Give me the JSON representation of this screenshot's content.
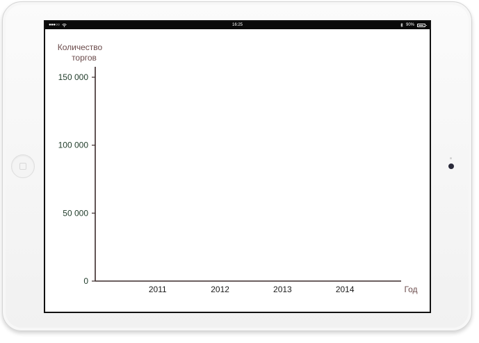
{
  "status_bar": {
    "signal_dots": "●●●○○",
    "time": "16:25",
    "battery_percent": "90%",
    "battery_level": 0.9,
    "icons": [
      "wifi-icon",
      "bluetooth-icon",
      "battery-icon"
    ]
  },
  "chart_data": {
    "type": "bar",
    "title": "",
    "ylabel_lines": [
      "Количество",
      "торгов"
    ],
    "xlabel": "Год",
    "categories": [
      "2011",
      "2012",
      "2013",
      "2014"
    ],
    "values": [
      0,
      0,
      0,
      0
    ],
    "ylim": [
      0,
      150000
    ],
    "yticks": [
      {
        "value": 0,
        "label": "0"
      },
      {
        "value": 50000,
        "label": "50 000"
      },
      {
        "value": 100000,
        "label": "100 000"
      },
      {
        "value": 150000,
        "label": "150 000"
      }
    ],
    "grid": false,
    "colors": {
      "axis": "#3a2a2a",
      "tick_label": "#1e3a28",
      "axis_title": "#6a4a4a"
    }
  }
}
